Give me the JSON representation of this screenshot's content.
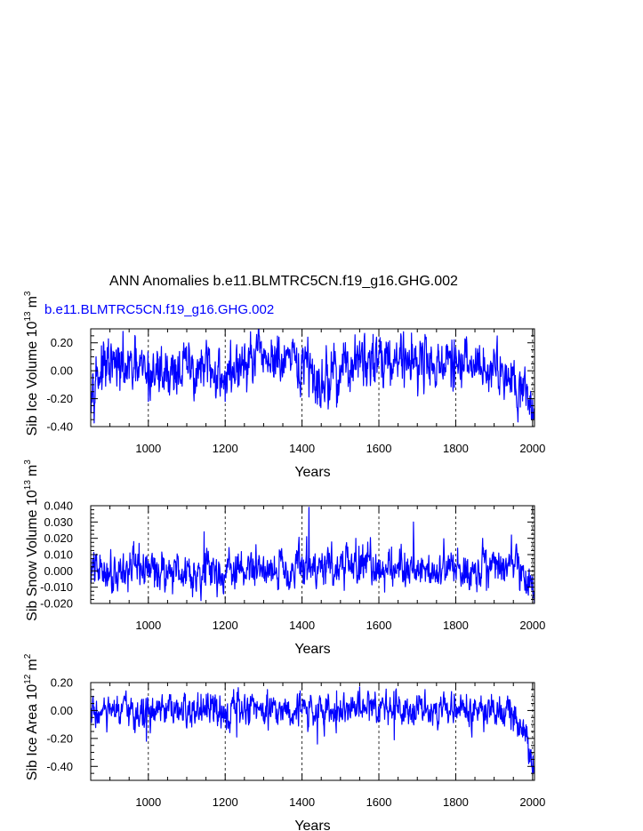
{
  "figure": {
    "title": "ANN Anomalies b.e11.BLMTRC5CN.f19_g16.GHG.002"
  },
  "chart_data": [
    {
      "type": "line",
      "series_label": "b.e11.BLMTRC5CN.f19_g16.GHG.002",
      "ylabel": "Sib Ice Volume 10",
      "ylabel_exp": "13",
      "ylabel_unit": "m",
      "ylabel_unit_exp": "3",
      "xlabel": "Years",
      "xlim": [
        850,
        2005
      ],
      "ylim": [
        -0.4,
        0.3
      ],
      "xticks": [
        1000,
        1200,
        1400,
        1600,
        1800,
        2000
      ],
      "xtick_labels": [
        "1000",
        "1200",
        "1400",
        "1600",
        "1800",
        "2000"
      ],
      "yticks": [
        -0.4,
        -0.2,
        0.0,
        0.2
      ],
      "ytick_labels": [
        "-0.40",
        "-0.20",
        "0.00",
        "0.20"
      ],
      "grid": "x-dashed",
      "color": "#0000ff",
      "x_start": 850,
      "x_end": 2005,
      "shape": {
        "base": 0.0,
        "noise_amp": 0.085,
        "spikes_up": [
          [
            1415,
            0.24
          ],
          [
            1585,
            0.26
          ],
          [
            1685,
            0.27
          ],
          [
            1790,
            0.22
          ],
          [
            1320,
            0.22
          ]
        ],
        "spikes_down": [
          [
            1200,
            -0.22
          ],
          [
            1490,
            -0.26
          ],
          [
            1440,
            -0.24
          ],
          [
            1000,
            -0.22
          ]
        ],
        "trend": [
          [
            850,
            -0.05
          ],
          [
            900,
            0.03
          ],
          [
            1000,
            -0.02
          ],
          [
            1100,
            0.02
          ],
          [
            1200,
            -0.03
          ],
          [
            1300,
            0.1
          ],
          [
            1350,
            0.04
          ],
          [
            1400,
            0.03
          ],
          [
            1450,
            -0.08
          ],
          [
            1500,
            0.02
          ],
          [
            1550,
            0.05
          ],
          [
            1600,
            0.1
          ],
          [
            1700,
            0.08
          ],
          [
            1800,
            0.02
          ],
          [
            1850,
            0.05
          ],
          [
            1900,
            0.02
          ],
          [
            1950,
            -0.02
          ],
          [
            1975,
            -0.12
          ],
          [
            2005,
            -0.3
          ]
        ]
      }
    },
    {
      "type": "line",
      "ylabel": "Sib Snow Volume 10",
      "ylabel_exp": "13",
      "ylabel_unit": "m",
      "ylabel_unit_exp": "3",
      "xlabel": "Years",
      "xlim": [
        850,
        2005
      ],
      "ylim": [
        -0.02,
        0.04
      ],
      "xticks": [
        1000,
        1200,
        1400,
        1600,
        1800,
        2000
      ],
      "xtick_labels": [
        "1000",
        "1200",
        "1400",
        "1600",
        "1800",
        "2000"
      ],
      "yticks": [
        -0.02,
        -0.01,
        0.0,
        0.01,
        0.02,
        0.03,
        0.04
      ],
      "ytick_labels": [
        "-0.020",
        "-0.010",
        "0.000",
        "0.010",
        "0.020",
        "0.030",
        "0.040"
      ],
      "grid": "x-dashed",
      "color": "#0000ff",
      "x_start": 850,
      "x_end": 2005,
      "shape": {
        "base": 0.0,
        "noise_amp": 0.0055,
        "spikes_up": [
          [
            1145,
            0.024
          ],
          [
            1412,
            0.021
          ],
          [
            1418,
            0.039
          ],
          [
            1690,
            0.03
          ],
          [
            1945,
            0.022
          ],
          [
            1870,
            0.02
          ],
          [
            1540,
            0.02
          ]
        ],
        "spikes_down": [
          [
            1510,
            -0.012
          ],
          [
            1615,
            -0.013
          ],
          [
            1880,
            -0.012
          ]
        ],
        "trend": [
          [
            850,
            0.0
          ],
          [
            1000,
            0.001
          ],
          [
            1200,
            -0.001
          ],
          [
            1300,
            0.002
          ],
          [
            1400,
            0.002
          ],
          [
            1500,
            0.003
          ],
          [
            1600,
            0.003
          ],
          [
            1700,
            0.002
          ],
          [
            1800,
            0.001
          ],
          [
            1900,
            0.001
          ],
          [
            1960,
            0.0
          ],
          [
            1985,
            -0.006
          ],
          [
            2005,
            -0.014
          ]
        ]
      }
    },
    {
      "type": "line",
      "ylabel": "Sib Ice Area 10",
      "ylabel_exp": "12",
      "ylabel_unit": "m",
      "ylabel_unit_exp": "2",
      "xlabel": "Years",
      "xlim": [
        850,
        2005
      ],
      "ylim": [
        -0.5,
        0.2
      ],
      "xticks": [
        1000,
        1200,
        1400,
        1600,
        1800,
        2000
      ],
      "xtick_labels": [
        "1000",
        "1200",
        "1400",
        "1600",
        "1800",
        "2000"
      ],
      "yticks": [
        -0.4,
        -0.2,
        0.0,
        0.2
      ],
      "ytick_labels": [
        "-0.40",
        "-0.20",
        "0.00",
        "0.20"
      ],
      "grid": "x-dashed",
      "color": "#0000ff",
      "x_start": 850,
      "x_end": 2005,
      "shape": {
        "base": 0.0,
        "noise_amp": 0.055,
        "spikes_up": [
          [
            1310,
            0.15
          ],
          [
            1720,
            0.15
          ],
          [
            1490,
            0.14
          ]
        ],
        "spikes_down": [
          [
            995,
            -0.22
          ],
          [
            1440,
            -0.24
          ],
          [
            1640,
            -0.21
          ],
          [
            1230,
            -0.19
          ]
        ],
        "trend": [
          [
            850,
            -0.02
          ],
          [
            1000,
            -0.02
          ],
          [
            1200,
            0.0
          ],
          [
            1300,
            0.03
          ],
          [
            1400,
            0.0
          ],
          [
            1500,
            0.0
          ],
          [
            1600,
            0.04
          ],
          [
            1700,
            0.03
          ],
          [
            1800,
            0.0
          ],
          [
            1900,
            0.0
          ],
          [
            1950,
            -0.04
          ],
          [
            1975,
            -0.12
          ],
          [
            2005,
            -0.4
          ]
        ]
      }
    }
  ]
}
